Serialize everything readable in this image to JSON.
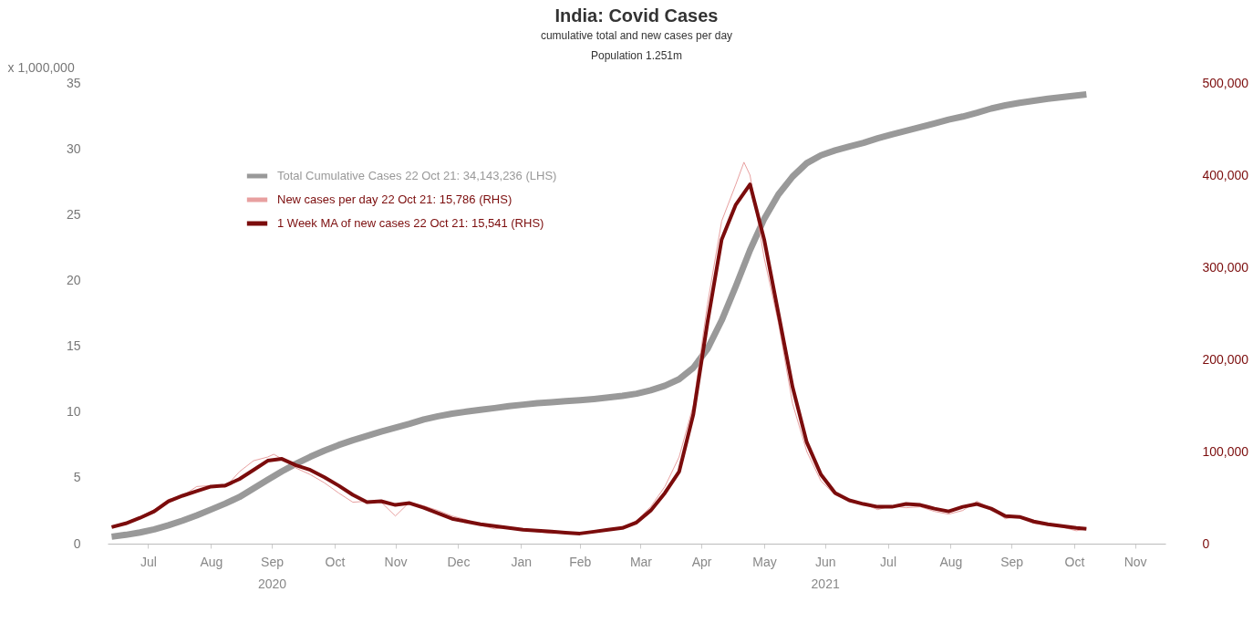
{
  "chart_data": {
    "type": "line",
    "title": "India: Covid Cases",
    "subtitle": "cumulative total and new cases per day",
    "annotations": [
      "Population 1.251m"
    ],
    "ylabel": "x 1,000,000",
    "xlim": [
      "2020-06-26",
      "2021-11-30"
    ],
    "xticks": [
      {
        "value": "2020-07-16",
        "label": "Jul"
      },
      {
        "value": "2020-08-16",
        "label": "Aug"
      },
      {
        "value": "2020-09-15",
        "label": "Sep\n2020"
      },
      {
        "value": "2020-10-16",
        "label": "Oct"
      },
      {
        "value": "2020-11-15",
        "label": "Nov"
      },
      {
        "value": "2020-12-16",
        "label": "Dec"
      },
      {
        "value": "2021-01-16",
        "label": "Jan"
      },
      {
        "value": "2021-02-14",
        "label": "Feb"
      },
      {
        "value": "2021-03-16",
        "label": "Mar"
      },
      {
        "value": "2021-04-15",
        "label": "Apr"
      },
      {
        "value": "2021-05-16",
        "label": "May"
      },
      {
        "value": "2021-06-15",
        "label": "Jun\n2021"
      },
      {
        "value": "2021-07-16",
        "label": "Jul"
      },
      {
        "value": "2021-08-16",
        "label": "Aug"
      },
      {
        "value": "2021-09-15",
        "label": "Sep"
      },
      {
        "value": "2021-10-16",
        "label": "Oct"
      },
      {
        "value": "2021-11-15",
        "label": "Nov"
      }
    ],
    "ylim": [
      0,
      35
    ],
    "yticks": [
      0,
      5,
      10,
      15,
      20,
      25,
      30,
      35
    ],
    "y2lim": [
      0,
      500000
    ],
    "y2ticks": [
      {
        "value": 0,
        "label": "0"
      },
      {
        "value": 100000,
        "label": "100,000"
      },
      {
        "value": 200000,
        "label": "200,000"
      },
      {
        "value": 300000,
        "label": "300,000"
      },
      {
        "value": 400000,
        "label": "400,000"
      },
      {
        "value": 500000,
        "label": "500,000"
      }
    ],
    "grid": false,
    "legend": "top left",
    "series": [
      {
        "name": "Total Cumulative Cases 22 Oct 21: 34,143,236 (LHS)",
        "color": "#999999",
        "x": [
          "2020-06-28",
          "2020-07-05",
          "2020-07-12",
          "2020-07-19",
          "2020-07-26",
          "2020-08-02",
          "2020-08-09",
          "2020-08-16",
          "2020-08-23",
          "2020-08-30",
          "2020-09-06",
          "2020-09-13",
          "2020-09-20",
          "2020-09-27",
          "2020-10-04",
          "2020-10-11",
          "2020-10-18",
          "2020-10-25",
          "2020-11-01",
          "2020-11-08",
          "2020-11-15",
          "2020-11-22",
          "2020-11-29",
          "2020-12-06",
          "2020-12-13",
          "2020-12-20",
          "2020-12-27",
          "2021-01-03",
          "2021-01-10",
          "2021-01-17",
          "2021-01-24",
          "2021-01-31",
          "2021-02-07",
          "2021-02-14",
          "2021-02-21",
          "2021-02-28",
          "2021-03-07",
          "2021-03-14",
          "2021-03-21",
          "2021-03-28",
          "2021-04-04",
          "2021-04-11",
          "2021-04-18",
          "2021-04-25",
          "2021-05-02",
          "2021-05-09",
          "2021-05-16",
          "2021-05-23",
          "2021-05-30",
          "2021-06-06",
          "2021-06-13",
          "2021-06-20",
          "2021-06-27",
          "2021-07-04",
          "2021-07-11",
          "2021-07-18",
          "2021-07-25",
          "2021-08-01",
          "2021-08-08",
          "2021-08-15",
          "2021-08-22",
          "2021-08-29",
          "2021-09-05",
          "2021-09-12",
          "2021-09-19",
          "2021-09-26",
          "2021-10-03",
          "2021-10-10",
          "2021-10-17",
          "2021-10-22"
        ],
        "values": [
          0.53,
          0.67,
          0.85,
          1.08,
          1.39,
          1.75,
          2.15,
          2.59,
          3.04,
          3.54,
          4.2,
          4.85,
          5.49,
          6.07,
          6.6,
          7.07,
          7.49,
          7.86,
          8.18,
          8.51,
          8.81,
          9.1,
          9.43,
          9.68,
          9.88,
          10.03,
          10.17,
          10.3,
          10.45,
          10.56,
          10.68,
          10.75,
          10.83,
          10.9,
          10.99,
          11.1,
          11.23,
          11.39,
          11.65,
          12.0,
          12.49,
          13.36,
          14.79,
          16.96,
          19.56,
          22.3,
          24.68,
          26.53,
          27.89,
          28.91,
          29.51,
          29.88,
          30.18,
          30.45,
          30.8,
          31.1,
          31.37,
          31.65,
          31.93,
          32.22,
          32.45,
          32.74,
          33.06,
          33.3,
          33.49,
          33.65,
          33.8,
          33.92,
          34.05,
          34.14
        ]
      },
      {
        "name": "New cases per day 22 Oct 21: 15,786 (RHS)",
        "color": "#e8a0a0",
        "axis": "y2",
        "x": [
          "2020-06-28",
          "2020-07-05",
          "2020-07-12",
          "2020-07-19",
          "2020-07-26",
          "2020-08-02",
          "2020-08-09",
          "2020-08-16",
          "2020-08-23",
          "2020-08-30",
          "2020-09-06",
          "2020-09-13",
          "2020-09-16",
          "2020-09-20",
          "2020-09-27",
          "2020-10-04",
          "2020-10-11",
          "2020-10-18",
          "2020-10-25",
          "2020-11-01",
          "2020-11-08",
          "2020-11-15",
          "2020-11-22",
          "2020-11-29",
          "2020-12-06",
          "2020-12-13",
          "2020-12-20",
          "2020-12-27",
          "2021-01-03",
          "2021-01-10",
          "2021-01-17",
          "2021-01-24",
          "2021-01-31",
          "2021-02-07",
          "2021-02-14",
          "2021-02-21",
          "2021-02-28",
          "2021-03-07",
          "2021-03-14",
          "2021-03-21",
          "2021-03-28",
          "2021-04-04",
          "2021-04-11",
          "2021-04-18",
          "2021-04-25",
          "2021-05-02",
          "2021-05-06",
          "2021-05-09",
          "2021-05-16",
          "2021-05-23",
          "2021-05-30",
          "2021-06-06",
          "2021-06-13",
          "2021-06-20",
          "2021-06-27",
          "2021-07-04",
          "2021-07-11",
          "2021-07-18",
          "2021-07-25",
          "2021-08-01",
          "2021-08-08",
          "2021-08-15",
          "2021-08-22",
          "2021-08-29",
          "2021-09-05",
          "2021-09-12",
          "2021-09-19",
          "2021-09-26",
          "2021-10-03",
          "2021-10-10",
          "2021-10-17",
          "2021-10-22"
        ],
        "values": [
          19000,
          23000,
          29000,
          37000,
          48000,
          52000,
          62000,
          63000,
          61000,
          78000,
          90000,
          94000,
          97000,
          92000,
          82000,
          75000,
          66000,
          55000,
          45000,
          46000,
          45000,
          30000,
          45000,
          41000,
          36000,
          30000,
          26000,
          20000,
          16000,
          18000,
          15000,
          13000,
          11000,
          12000,
          11000,
          14000,
          16000,
          18000,
          25000,
          40000,
          62000,
          94000,
          150000,
          260000,
          350000,
          390000,
          414000,
          400000,
          310000,
          240000,
          152000,
          100000,
          68000,
          53000,
          46000,
          43000,
          37000,
          41000,
          39000,
          40000,
          35000,
          32000,
          36000,
          46000,
          38000,
          27000,
          30000,
          22000,
          20000,
          18000,
          14000,
          16000
        ]
      },
      {
        "name": "1 Week MA of new cases 22 Oct 21: 15,541 (RHS)",
        "color": "#7b0c0c",
        "axis": "y2",
        "x": [
          "2020-06-28",
          "2020-07-05",
          "2020-07-12",
          "2020-07-19",
          "2020-07-26",
          "2020-08-02",
          "2020-08-09",
          "2020-08-16",
          "2020-08-23",
          "2020-08-30",
          "2020-09-06",
          "2020-09-13",
          "2020-09-20",
          "2020-09-27",
          "2020-10-04",
          "2020-10-11",
          "2020-10-18",
          "2020-10-25",
          "2020-11-01",
          "2020-11-08",
          "2020-11-15",
          "2020-11-22",
          "2020-11-29",
          "2020-12-06",
          "2020-12-13",
          "2020-12-20",
          "2020-12-27",
          "2021-01-03",
          "2021-01-10",
          "2021-01-17",
          "2021-01-24",
          "2021-01-31",
          "2021-02-07",
          "2021-02-14",
          "2021-02-21",
          "2021-02-28",
          "2021-03-07",
          "2021-03-14",
          "2021-03-21",
          "2021-03-28",
          "2021-04-04",
          "2021-04-11",
          "2021-04-18",
          "2021-04-25",
          "2021-05-02",
          "2021-05-09",
          "2021-05-16",
          "2021-05-23",
          "2021-05-30",
          "2021-06-06",
          "2021-06-13",
          "2021-06-20",
          "2021-06-27",
          "2021-07-04",
          "2021-07-11",
          "2021-07-18",
          "2021-07-25",
          "2021-08-01",
          "2021-08-08",
          "2021-08-15",
          "2021-08-22",
          "2021-08-29",
          "2021-09-05",
          "2021-09-12",
          "2021-09-19",
          "2021-09-26",
          "2021-10-03",
          "2021-10-10",
          "2021-10-17",
          "2021-10-22"
        ],
        "values": [
          18000,
          22000,
          28000,
          35000,
          46000,
          52000,
          57000,
          62000,
          63000,
          70000,
          80000,
          90000,
          92000,
          85000,
          80000,
          72000,
          63000,
          53000,
          45000,
          46000,
          42000,
          44000,
          39000,
          33000,
          27000,
          24000,
          21000,
          19000,
          17000,
          15000,
          14000,
          13000,
          12000,
          11000,
          13000,
          15000,
          17000,
          23000,
          36000,
          55000,
          78000,
          140000,
          240000,
          330000,
          368000,
          390000,
          330000,
          250000,
          170000,
          110000,
          75000,
          55000,
          47000,
          43000,
          40000,
          40000,
          43000,
          42000,
          38000,
          35000,
          40000,
          43000,
          38000,
          30000,
          29000,
          24000,
          21000,
          19000,
          17000,
          16000
        ]
      }
    ]
  }
}
